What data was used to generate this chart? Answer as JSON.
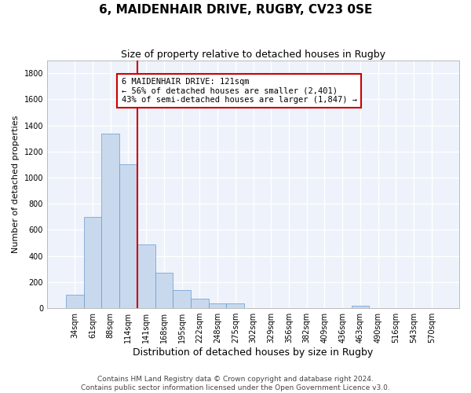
{
  "title": "6, MAIDENHAIR DRIVE, RUGBY, CV23 0SE",
  "subtitle": "Size of property relative to detached houses in Rugby",
  "xlabel": "Distribution of detached houses by size in Rugby",
  "ylabel": "Number of detached properties",
  "bar_color": "#c8d9ee",
  "bar_edge_color": "#6699cc",
  "background_color": "#eef2fb",
  "grid_color": "#ffffff",
  "annotation_line_color": "#cc0000",
  "annotation_box_color": "#cc0000",
  "annotation_text": "6 MAIDENHAIR DRIVE: 121sqm\n← 56% of detached houses are smaller (2,401)\n43% of semi-detached houses are larger (1,847) →",
  "categories": [
    "34sqm",
    "61sqm",
    "88sqm",
    "114sqm",
    "141sqm",
    "168sqm",
    "195sqm",
    "222sqm",
    "248sqm",
    "275sqm",
    "302sqm",
    "329sqm",
    "356sqm",
    "382sqm",
    "409sqm",
    "436sqm",
    "463sqm",
    "490sqm",
    "516sqm",
    "543sqm",
    "570sqm"
  ],
  "values": [
    100,
    700,
    1340,
    1100,
    490,
    270,
    140,
    70,
    35,
    35,
    0,
    0,
    0,
    0,
    0,
    0,
    20,
    0,
    0,
    0,
    0
  ],
  "ylim": [
    0,
    1900
  ],
  "yticks": [
    0,
    200,
    400,
    600,
    800,
    1000,
    1200,
    1400,
    1600,
    1800
  ],
  "vline_index": 3.5,
  "footer_text": "Contains HM Land Registry data © Crown copyright and database right 2024.\nContains public sector information licensed under the Open Government Licence v3.0.",
  "title_fontsize": 11,
  "subtitle_fontsize": 9,
  "ylabel_fontsize": 8,
  "xlabel_fontsize": 9,
  "tick_fontsize": 7,
  "annotation_fontsize": 7.5,
  "footer_fontsize": 6.5
}
